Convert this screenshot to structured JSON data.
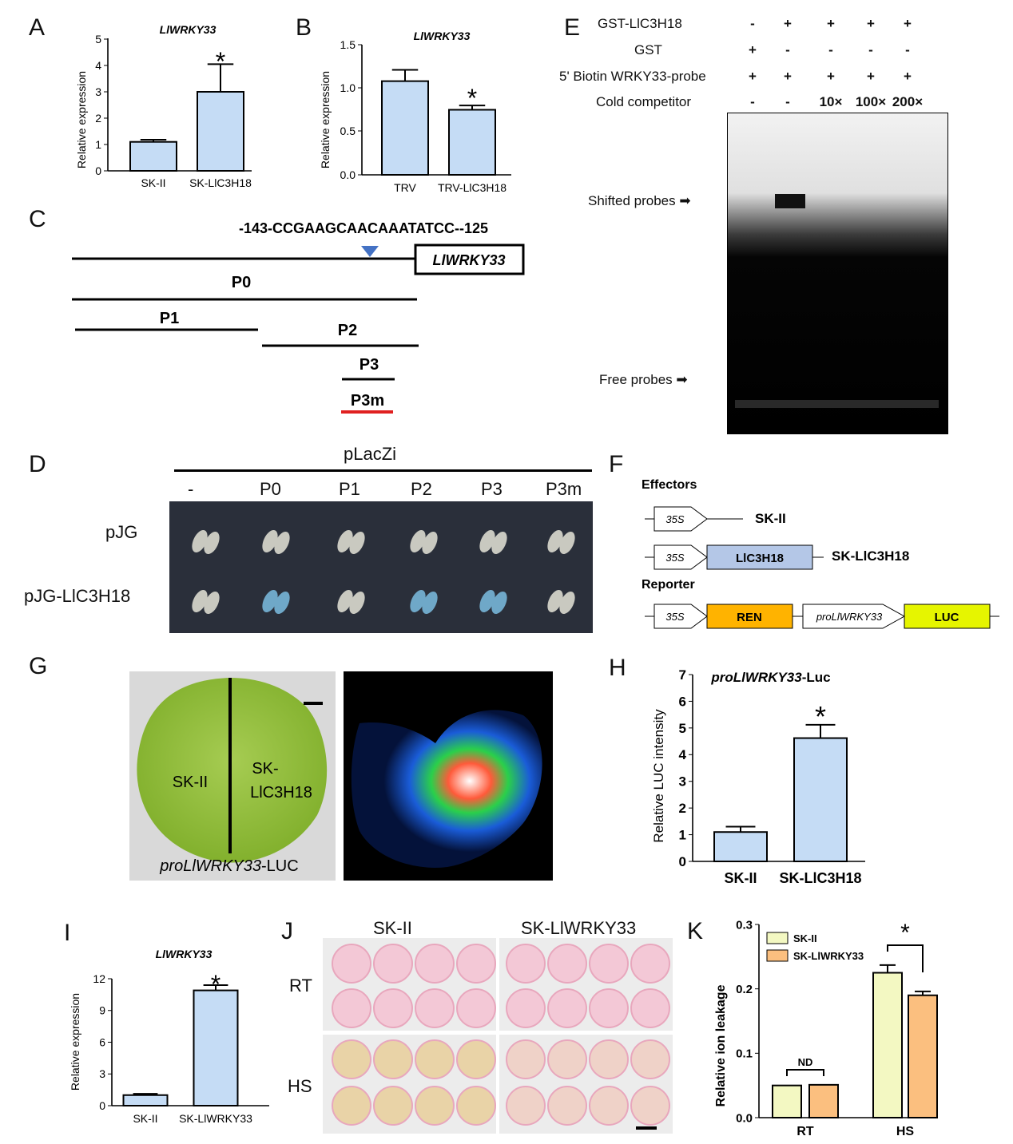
{
  "panels": {
    "A": {
      "letter": "A",
      "title": "LlWRKY33",
      "ylabel": "Relative expression",
      "yticks": [
        "0",
        "1",
        "2",
        "3",
        "4",
        "5"
      ],
      "categories": [
        "SK-II",
        "SK-LlC3H18"
      ],
      "values": [
        1.1,
        3.0
      ],
      "errors": [
        0.08,
        1.05
      ],
      "sig": "*"
    },
    "B": {
      "letter": "B",
      "title": "LlWRKY33",
      "ylabel": "Relative expression",
      "yticks": [
        "0.0",
        "0.5",
        "1.0",
        "1.5"
      ],
      "categories": [
        "TRV",
        "TRV-LlC3H18"
      ],
      "values": [
        1.08,
        0.75
      ],
      "errors": [
        0.13,
        0.05
      ],
      "sig": "*"
    },
    "C": {
      "letter": "C",
      "sequence": "-143-CCGAAGCAACAAATATCC--125",
      "gene": "LlWRKY33",
      "fragments": [
        "P0",
        "P1",
        "P2",
        "P3",
        "P3m"
      ]
    },
    "D": {
      "letter": "D",
      "vector": "pLacZi",
      "columns": [
        "-",
        "P0",
        "P1",
        "P2",
        "P3",
        "P3m"
      ],
      "rows": [
        "pJG",
        "pJG-LlC3H18"
      ]
    },
    "E": {
      "letter": "E",
      "rows": [
        {
          "label": "GST-LlC3H18",
          "marks": [
            "-",
            "+",
            "+",
            "+",
            "+"
          ]
        },
        {
          "label": "GST",
          "marks": [
            "+",
            "-",
            "-",
            "-",
            "-"
          ]
        },
        {
          "label": "5' Biotin WRKY33-probe",
          "marks": [
            "+",
            "+",
            "+",
            "+",
            "+"
          ]
        },
        {
          "label": "Cold competitor",
          "marks": [
            "-",
            "-",
            "10×",
            "100×",
            "200×"
          ]
        }
      ],
      "shifted": "Shifted probes",
      "free": "Free probes"
    },
    "F": {
      "letter": "F",
      "effectors": "Effectors",
      "reporter": "Reporter",
      "p35s": "35S",
      "sk": "SK-II",
      "sklic": "SK-LlC3H18",
      "lic": "LlC3H18",
      "ren": "REN",
      "pro": "proLlWRKY33",
      "luc": "LUC",
      "colors": {
        "lic": "#b4c7e7",
        "ren": "#ffb300",
        "luc": "#e6f500"
      }
    },
    "G": {
      "letter": "G",
      "left": "SK-II",
      "right1": "SK-",
      "right2": "LlC3H18",
      "caption_italic": "proLlWRKY33",
      "caption_rest": "-LUC"
    },
    "H": {
      "letter": "H",
      "title_italic": "proLlWRKY33",
      "title_rest": "-Luc",
      "ylabel": "Relative LUC intensity",
      "yticks": [
        "0",
        "1",
        "2",
        "3",
        "4",
        "5",
        "6",
        "7"
      ],
      "categories": [
        "SK-II",
        "SK-LlC3H18"
      ],
      "values": [
        1.1,
        4.62
      ],
      "errors": [
        0.2,
        0.5
      ],
      "sig": "*"
    },
    "I": {
      "letter": "I",
      "title": "LlWRKY33",
      "ylabel": "Relative expression",
      "yticks": [
        "0",
        "3",
        "6",
        "9",
        "12"
      ],
      "categories": [
        "SK-II",
        "SK-LlWRKY33"
      ],
      "values": [
        1.0,
        10.9
      ],
      "errors": [
        0.12,
        0.5
      ],
      "sig": "*"
    },
    "J": {
      "letter": "J",
      "cols": [
        "SK-II",
        "SK-LlWRKY33"
      ],
      "rows": [
        "RT",
        "HS"
      ]
    },
    "K": {
      "letter": "K",
      "ylabel": "Relative ion leakage",
      "yticks": [
        "0.0",
        "0.1",
        "0.2",
        "0.3"
      ],
      "legend": [
        "SK-II",
        "SK-LlWRKY33"
      ],
      "groups": [
        "RT",
        "HS"
      ],
      "nd": "ND",
      "sig": "*",
      "colors": {
        "sk": "#f3f8c2",
        "wrky": "#fbbf7f"
      }
    }
  },
  "chart_data": [
    {
      "type": "bar",
      "title": "LlWRKY33",
      "ylabel": "Relative expression",
      "categories": [
        "SK-II",
        "SK-LlC3H18"
      ],
      "values": [
        1.1,
        3.0
      ],
      "ylim": [
        0,
        5
      ]
    },
    {
      "type": "bar",
      "title": "LlWRKY33",
      "ylabel": "Relative expression",
      "categories": [
        "TRV",
        "TRV-LlC3H18"
      ],
      "values": [
        1.08,
        0.75
      ],
      "ylim": [
        0,
        1.5
      ]
    },
    {
      "type": "bar",
      "title": "proLlWRKY33-Luc",
      "ylabel": "Relative LUC intensity",
      "categories": [
        "SK-II",
        "SK-LlC3H18"
      ],
      "values": [
        1.1,
        4.62
      ],
      "ylim": [
        0,
        7
      ]
    },
    {
      "type": "bar",
      "title": "LlWRKY33",
      "ylabel": "Relative expression",
      "categories": [
        "SK-II",
        "SK-LlWRKY33"
      ],
      "values": [
        1.0,
        10.9
      ],
      "ylim": [
        0,
        12
      ]
    },
    {
      "type": "bar",
      "ylabel": "Relative ion leakage",
      "categories": [
        "RT",
        "HS"
      ],
      "series": [
        {
          "name": "SK-II",
          "values": [
            0.05,
            0.225
          ]
        },
        {
          "name": "SK-LlWRKY33",
          "values": [
            0.051,
            0.19
          ]
        }
      ],
      "ylim": [
        0,
        0.3
      ]
    }
  ]
}
